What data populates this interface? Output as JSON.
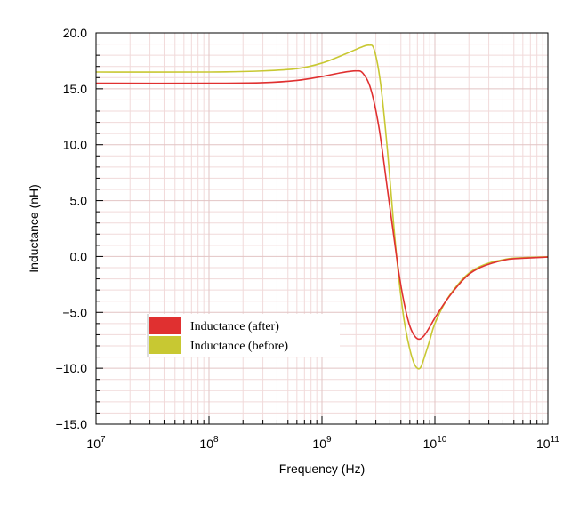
{
  "chart_data": {
    "type": "line",
    "title": "",
    "xlabel": "Frequency (Hz)",
    "ylabel": "Inductance (nH)",
    "x_scale": "log",
    "xlim": [
      10000000,
      100000000000
    ],
    "ylim": [
      -15,
      20
    ],
    "x_ticks": [
      {
        "value": 10000000,
        "base": "10",
        "exp": "7"
      },
      {
        "value": 100000000,
        "base": "10",
        "exp": "8"
      },
      {
        "value": 1000000000,
        "base": "10",
        "exp": "9"
      },
      {
        "value": 10000000000,
        "base": "10",
        "exp": "10"
      },
      {
        "value": 100000000000,
        "base": "10",
        "exp": "11"
      }
    ],
    "y_ticks": [
      {
        "value": 20,
        "label": "20.0"
      },
      {
        "value": 15,
        "label": "15.0"
      },
      {
        "value": 10,
        "label": "10.0"
      },
      {
        "value": 5,
        "label": "5.0"
      },
      {
        "value": 0,
        "label": "0.0"
      },
      {
        "value": -5,
        "label": "−5.0"
      },
      {
        "value": -10,
        "label": "−10.0"
      },
      {
        "value": -15,
        "label": "−15.0"
      }
    ],
    "grid": true,
    "legend_position": "lower-left",
    "series": [
      {
        "name": "Inductance (after)",
        "color": "#e03030",
        "points": [
          [
            10000000,
            15.5
          ],
          [
            100000000,
            15.5
          ],
          [
            300000000,
            15.55
          ],
          [
            600000000,
            15.75
          ],
          [
            1000000000,
            16.1
          ],
          [
            1500000000,
            16.45
          ],
          [
            2000000000,
            16.6
          ],
          [
            2300000000,
            16.4
          ],
          [
            2700000000,
            15.0
          ],
          [
            3200000000,
            11.5
          ],
          [
            3800000000,
            6.0
          ],
          [
            4300000000,
            2.0
          ],
          [
            4800000000,
            -1.5
          ],
          [
            5300000000,
            -4.0
          ],
          [
            5900000000,
            -6.0
          ],
          [
            6500000000,
            -7.0
          ],
          [
            7200000000,
            -7.4
          ],
          [
            8000000000,
            -7.1
          ],
          [
            9000000000,
            -6.3
          ],
          [
            10000000000,
            -5.5
          ],
          [
            12500000000,
            -4.0
          ],
          [
            16000000000,
            -2.6
          ],
          [
            20000000000,
            -1.6
          ],
          [
            25000000000,
            -1.0
          ],
          [
            32000000000,
            -0.6
          ],
          [
            40000000000,
            -0.35
          ],
          [
            50000000000,
            -0.2
          ],
          [
            100000000000,
            -0.05
          ]
        ]
      },
      {
        "name": "Inductance (before)",
        "color": "#c8c832",
        "points": [
          [
            10000000,
            16.5
          ],
          [
            100000000,
            16.5
          ],
          [
            300000000,
            16.6
          ],
          [
            600000000,
            16.8
          ],
          [
            1000000000,
            17.3
          ],
          [
            1600000000,
            18.1
          ],
          [
            2200000000,
            18.7
          ],
          [
            2600000000,
            18.9
          ],
          [
            2900000000,
            18.5
          ],
          [
            3300000000,
            15.5
          ],
          [
            3800000000,
            9.5
          ],
          [
            4300000000,
            3.0
          ],
          [
            4800000000,
            -2.0
          ],
          [
            5300000000,
            -5.5
          ],
          [
            5900000000,
            -8.0
          ],
          [
            6500000000,
            -9.5
          ],
          [
            7000000000,
            -10.0
          ],
          [
            7500000000,
            -9.9
          ],
          [
            8200000000,
            -8.8
          ],
          [
            9000000000,
            -7.5
          ],
          [
            10000000000,
            -6.0
          ],
          [
            12500000000,
            -4.0
          ],
          [
            16000000000,
            -2.5
          ],
          [
            20000000000,
            -1.5
          ],
          [
            25000000000,
            -0.9
          ],
          [
            32000000000,
            -0.5
          ],
          [
            40000000000,
            -0.3
          ],
          [
            50000000000,
            -0.15
          ],
          [
            100000000000,
            -0.03
          ]
        ]
      }
    ]
  }
}
